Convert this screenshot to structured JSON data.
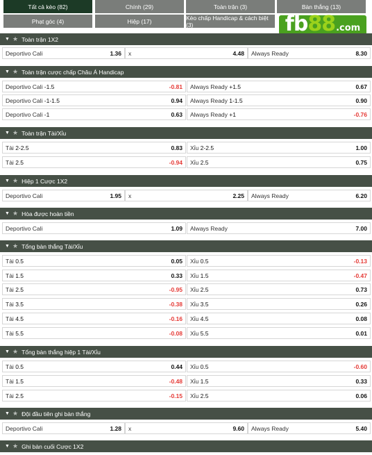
{
  "tabs": [
    {
      "label": "Tất cả kèo (82)",
      "active": true
    },
    {
      "label": "Chính (29)",
      "active": false
    },
    {
      "label": "Toàn trận (3)",
      "active": false
    },
    {
      "label": "Bàn thắng (13)",
      "active": false
    },
    {
      "label": "Phạt góc (4)",
      "active": false
    },
    {
      "label": "Hiệp (17)",
      "active": false
    },
    {
      "label": "Kèo chấp Handicap & cách biệt (3)",
      "active": false
    }
  ],
  "logo": {
    "part1": "fb",
    "part2": "88",
    "suffix": ".com"
  },
  "sections": [
    {
      "title": "Toàn trận 1X2"
    },
    {
      "title": "Toàn trận cược chấp Châu Á Handicap"
    },
    {
      "title": "Toàn trận Tài/Xỉu"
    },
    {
      "title": "Hiệp 1 Cược 1X2"
    },
    {
      "title": "Hòa được hoàn tiền"
    },
    {
      "title": "Tổng bàn thắng Tài/Xỉu"
    },
    {
      "title": "Tổng bàn thắng hiệp 1 Tài/Xỉu"
    },
    {
      "title": "Đội đầu tiên ghi bàn thắng"
    },
    {
      "title": "Ghi bàn cuối Cược 1X2"
    }
  ],
  "s0": [
    {
      "a": "Deportivo Cali",
      "ao": "1.36",
      "b": "x",
      "bo": "4.48",
      "c": "Always Ready",
      "co": "8.30"
    }
  ],
  "s1": [
    {
      "a": "Deportivo Cali",
      "al": "-1.5",
      "ao": "-0.81",
      "b": "Always Ready",
      "bl": "+1.5",
      "bo": "0.67"
    },
    {
      "a": "Deportivo Cali",
      "al": "-1-1.5",
      "ao": "0.94",
      "b": "Always Ready",
      "bl": "1-1.5",
      "bo": "0.90"
    },
    {
      "a": "Deportivo Cali",
      "al": "-1",
      "ao": "0.63",
      "b": "Always Ready",
      "bl": "+1",
      "bo": "-0.76"
    }
  ],
  "s2": [
    {
      "a": "Tài",
      "al": "2-2.5",
      "ao": "0.83",
      "b": "Xỉu",
      "bl": "2-2.5",
      "bo": "1.00"
    },
    {
      "a": "Tài",
      "al": "2.5",
      "ao": "-0.94",
      "b": "Xỉu",
      "bl": "2.5",
      "bo": "0.75"
    }
  ],
  "s3": [
    {
      "a": "Deportivo Cali",
      "ao": "1.95",
      "b": "x",
      "bo": "2.25",
      "c": "Always Ready",
      "co": "6.20"
    }
  ],
  "s4": [
    {
      "a": "Deportivo Cali",
      "ao": "1.09",
      "b": "Always Ready",
      "bo": "7.00"
    }
  ],
  "s5": [
    {
      "a": "Tài",
      "al": "0.5",
      "ao": "0.05",
      "b": "Xỉu",
      "bl": "0.5",
      "bo": "-0.13"
    },
    {
      "a": "Tài",
      "al": "1.5",
      "ao": "0.33",
      "b": "Xỉu",
      "bl": "1.5",
      "bo": "-0.47"
    },
    {
      "a": "Tài",
      "al": "2.5",
      "ao": "-0.95",
      "b": "Xỉu",
      "bl": "2.5",
      "bo": "0.73"
    },
    {
      "a": "Tài",
      "al": "3.5",
      "ao": "-0.38",
      "b": "Xỉu",
      "bl": "3.5",
      "bo": "0.26"
    },
    {
      "a": "Tài",
      "al": "4.5",
      "ao": "-0.16",
      "b": "Xỉu",
      "bl": "4.5",
      "bo": "0.08"
    },
    {
      "a": "Tài",
      "al": "5.5",
      "ao": "-0.08",
      "b": "Xỉu",
      "bl": "5.5",
      "bo": "0.01"
    }
  ],
  "s6": [
    {
      "a": "Tài",
      "al": "0.5",
      "ao": "0.44",
      "b": "Xỉu",
      "bl": "0.5",
      "bo": "-0.60"
    },
    {
      "a": "Tài",
      "al": "1.5",
      "ao": "-0.48",
      "b": "Xỉu",
      "bl": "1.5",
      "bo": "0.33"
    },
    {
      "a": "Tài",
      "al": "2.5",
      "ao": "-0.15",
      "b": "Xỉu",
      "bl": "2.5",
      "bo": "0.06"
    }
  ],
  "s7": [
    {
      "a": "Deportivo Cali",
      "ao": "1.28",
      "b": "x",
      "bo": "9.60",
      "c": "Always Ready",
      "co": "5.40"
    }
  ],
  "colors": {
    "header_bg": "#465046",
    "tab_bg": "#7a7d7a",
    "tab_active_bg": "#1c3a26",
    "negative": "#e53935",
    "logo_green": "#9bd21b"
  }
}
